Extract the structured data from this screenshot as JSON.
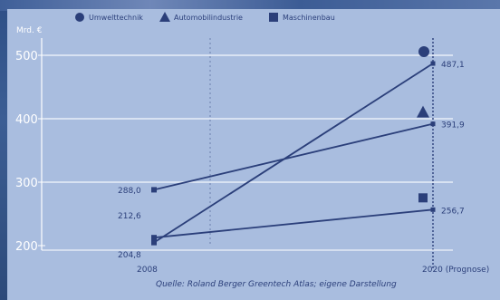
{
  "chart_data": {
    "type": "line",
    "unit_label": "Mrd. €",
    "categories": [
      "2008",
      "2020 (Prognose)"
    ],
    "ylim": [
      200,
      500
    ],
    "yticks": [
      "500",
      "400",
      "300",
      "200"
    ],
    "ytick_values": [
      500,
      400,
      300,
      200
    ],
    "series": [
      {
        "name": "Umwelttechnik",
        "marker": "circle",
        "values": [
          204.8,
          487.1
        ],
        "labels": [
          "204,8",
          "487,1"
        ]
      },
      {
        "name": "Automobilindustrie",
        "marker": "triangle",
        "values": [
          288.0,
          391.9
        ],
        "labels": [
          "288,0",
          "391,9"
        ]
      },
      {
        "name": "Maschinenbau",
        "marker": "square",
        "values": [
          212.6,
          256.7
        ],
        "labels": [
          "212,6",
          "256,7"
        ]
      }
    ],
    "source": "Quelle: Roland Berger Greentech Atlas; eigene Darstellung",
    "legend_position": "top",
    "grid": true,
    "colors": {
      "line": "#2b3f7a",
      "grid": "#e8eef8",
      "text": "#2b3f7a",
      "tick": "#ffffff"
    }
  }
}
